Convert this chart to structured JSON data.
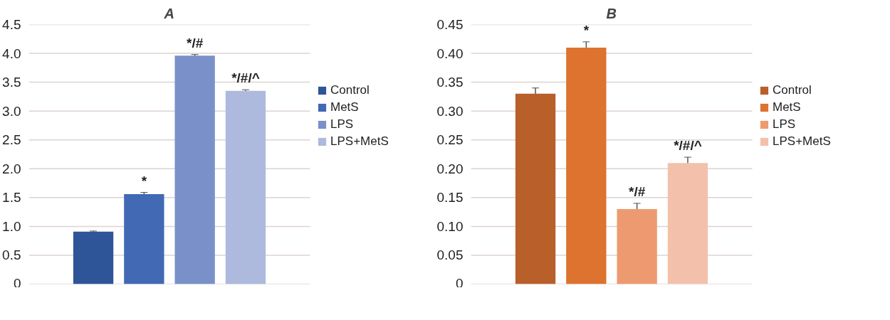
{
  "chart_data": [
    {
      "type": "bar",
      "title": "A",
      "categories": [
        null
      ],
      "series": [
        {
          "name": "Control",
          "color": "#2e5597",
          "values": [
            0.91
          ],
          "errors": [
            0.01
          ],
          "value_labels": [
            null
          ]
        },
        {
          "name": "MetS",
          "color": "#4169b4",
          "values": [
            1.56
          ],
          "errors": [
            0.03
          ],
          "value_labels": [
            "*"
          ]
        },
        {
          "name": "LPS",
          "color": "#7a90c8",
          "values": [
            3.96
          ],
          "errors": [
            0.02
          ],
          "value_labels": [
            "*/#"
          ]
        },
        {
          "name": "LPS+MetS",
          "color": "#adbade",
          "values": [
            3.35
          ],
          "errors": [
            0.02
          ],
          "value_labels": [
            "*/#/^"
          ]
        }
      ],
      "ylim": [
        0,
        4.5
      ],
      "yticks": [
        {
          "value": 0,
          "label": "0"
        },
        {
          "value": 0.5,
          "label": "0.5"
        },
        {
          "value": 1,
          "label": "1.0"
        },
        {
          "value": 1.5,
          "label": "1.5"
        },
        {
          "value": 2,
          "label": "2.0"
        },
        {
          "value": 2.5,
          "label": "2.5"
        },
        {
          "value": 3,
          "label": "3.0"
        },
        {
          "value": 3.5,
          "label": "3.5"
        },
        {
          "value": 4,
          "label": "4.0"
        },
        {
          "value": 4.5,
          "label": "4.5"
        }
      ],
      "grid": "y",
      "legend": "right"
    },
    {
      "type": "bar",
      "title": "B",
      "categories": [
        null
      ],
      "series": [
        {
          "name": "Control",
          "color": "#b85f2a",
          "values": [
            0.33
          ],
          "errors": [
            0.01
          ],
          "value_labels": [
            null
          ]
        },
        {
          "name": "MetS",
          "color": "#dd732e",
          "values": [
            0.41
          ],
          "errors": [
            0.01
          ],
          "value_labels": [
            "*"
          ]
        },
        {
          "name": "LPS",
          "color": "#ee9a70",
          "values": [
            0.13
          ],
          "errors": [
            0.01
          ],
          "value_labels": [
            "*/#"
          ]
        },
        {
          "name": "LPS+MetS",
          "color": "#f3c1ab",
          "values": [
            0.21
          ],
          "errors": [
            0.01
          ],
          "value_labels": [
            "*/#/^"
          ]
        }
      ],
      "ylim": [
        0,
        0.45
      ],
      "yticks": [
        {
          "value": 0,
          "label": "0"
        },
        {
          "value": 0.05,
          "label": "0.05"
        },
        {
          "value": 0.1,
          "label": "0.10"
        },
        {
          "value": 0.15,
          "label": "0.15"
        },
        {
          "value": 0.2,
          "label": "0.20"
        },
        {
          "value": 0.25,
          "label": "0.25"
        },
        {
          "value": 0.3,
          "label": "0.30"
        },
        {
          "value": 0.35,
          "label": "0.35"
        },
        {
          "value": 0.4,
          "label": "0.40"
        },
        {
          "value": 0.45,
          "label": "0.45"
        }
      ],
      "grid": "y",
      "legend": "right"
    }
  ]
}
